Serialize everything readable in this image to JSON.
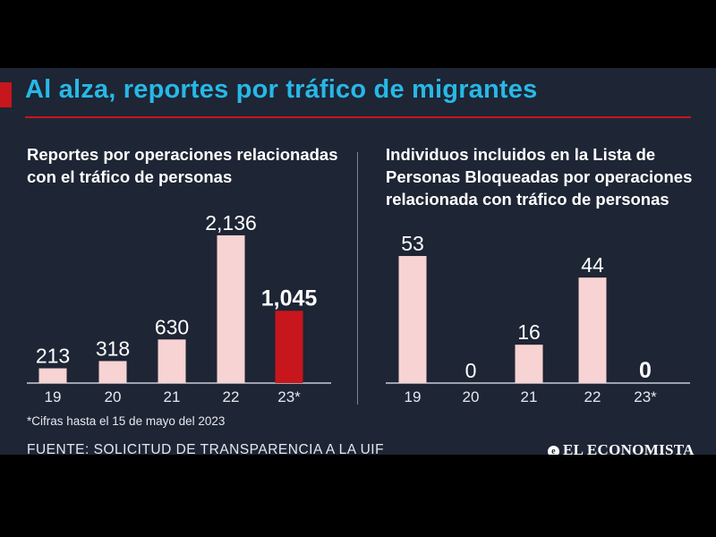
{
  "title": "Al alza, reportes por tráfico de migrantes",
  "left_subtitle": [
    "Reportes por operaciones relacionadas",
    "con el tráfico de personas"
  ],
  "right_subtitle": [
    "Individuos incluidos en la Lista de",
    "Personas Bloqueadas por operaciones",
    "relacionada con tráfico de personas"
  ],
  "footnote": "*Cifras hasta el 15 de mayo del 2023",
  "source": "FUENTE: SOLICITUD DE TRANSPARENCIA A LA UIF",
  "brand": "EL ECONOMISTA",
  "colors": {
    "bar": "#f7d3d3",
    "highlight": "#c8161d",
    "accent": "#27b8e6",
    "background": "#1e2535"
  },
  "chart_data": [
    {
      "type": "bar",
      "title": "Reportes por operaciones relacionadas con el tráfico de personas",
      "categories": [
        "19",
        "20",
        "21",
        "22",
        "23*"
      ],
      "values": [
        213,
        318,
        630,
        2136,
        1045
      ],
      "value_labels": [
        "213",
        "318",
        "630",
        "2,136",
        "1,045"
      ],
      "highlight_index": 4,
      "ylim": [
        0,
        2200
      ],
      "xlabel": "",
      "ylabel": ""
    },
    {
      "type": "bar",
      "title": "Individuos incluidos en la Lista de Personas Bloqueadas por operaciones relacionada con tráfico de personas",
      "categories": [
        "19",
        "20",
        "21",
        "22",
        "23*"
      ],
      "values": [
        53,
        0,
        16,
        44,
        0
      ],
      "value_labels": [
        "53",
        "0",
        "16",
        "44",
        "0"
      ],
      "highlight_index": 4,
      "ylim": [
        0,
        56
      ],
      "xlabel": "",
      "ylabel": ""
    }
  ]
}
